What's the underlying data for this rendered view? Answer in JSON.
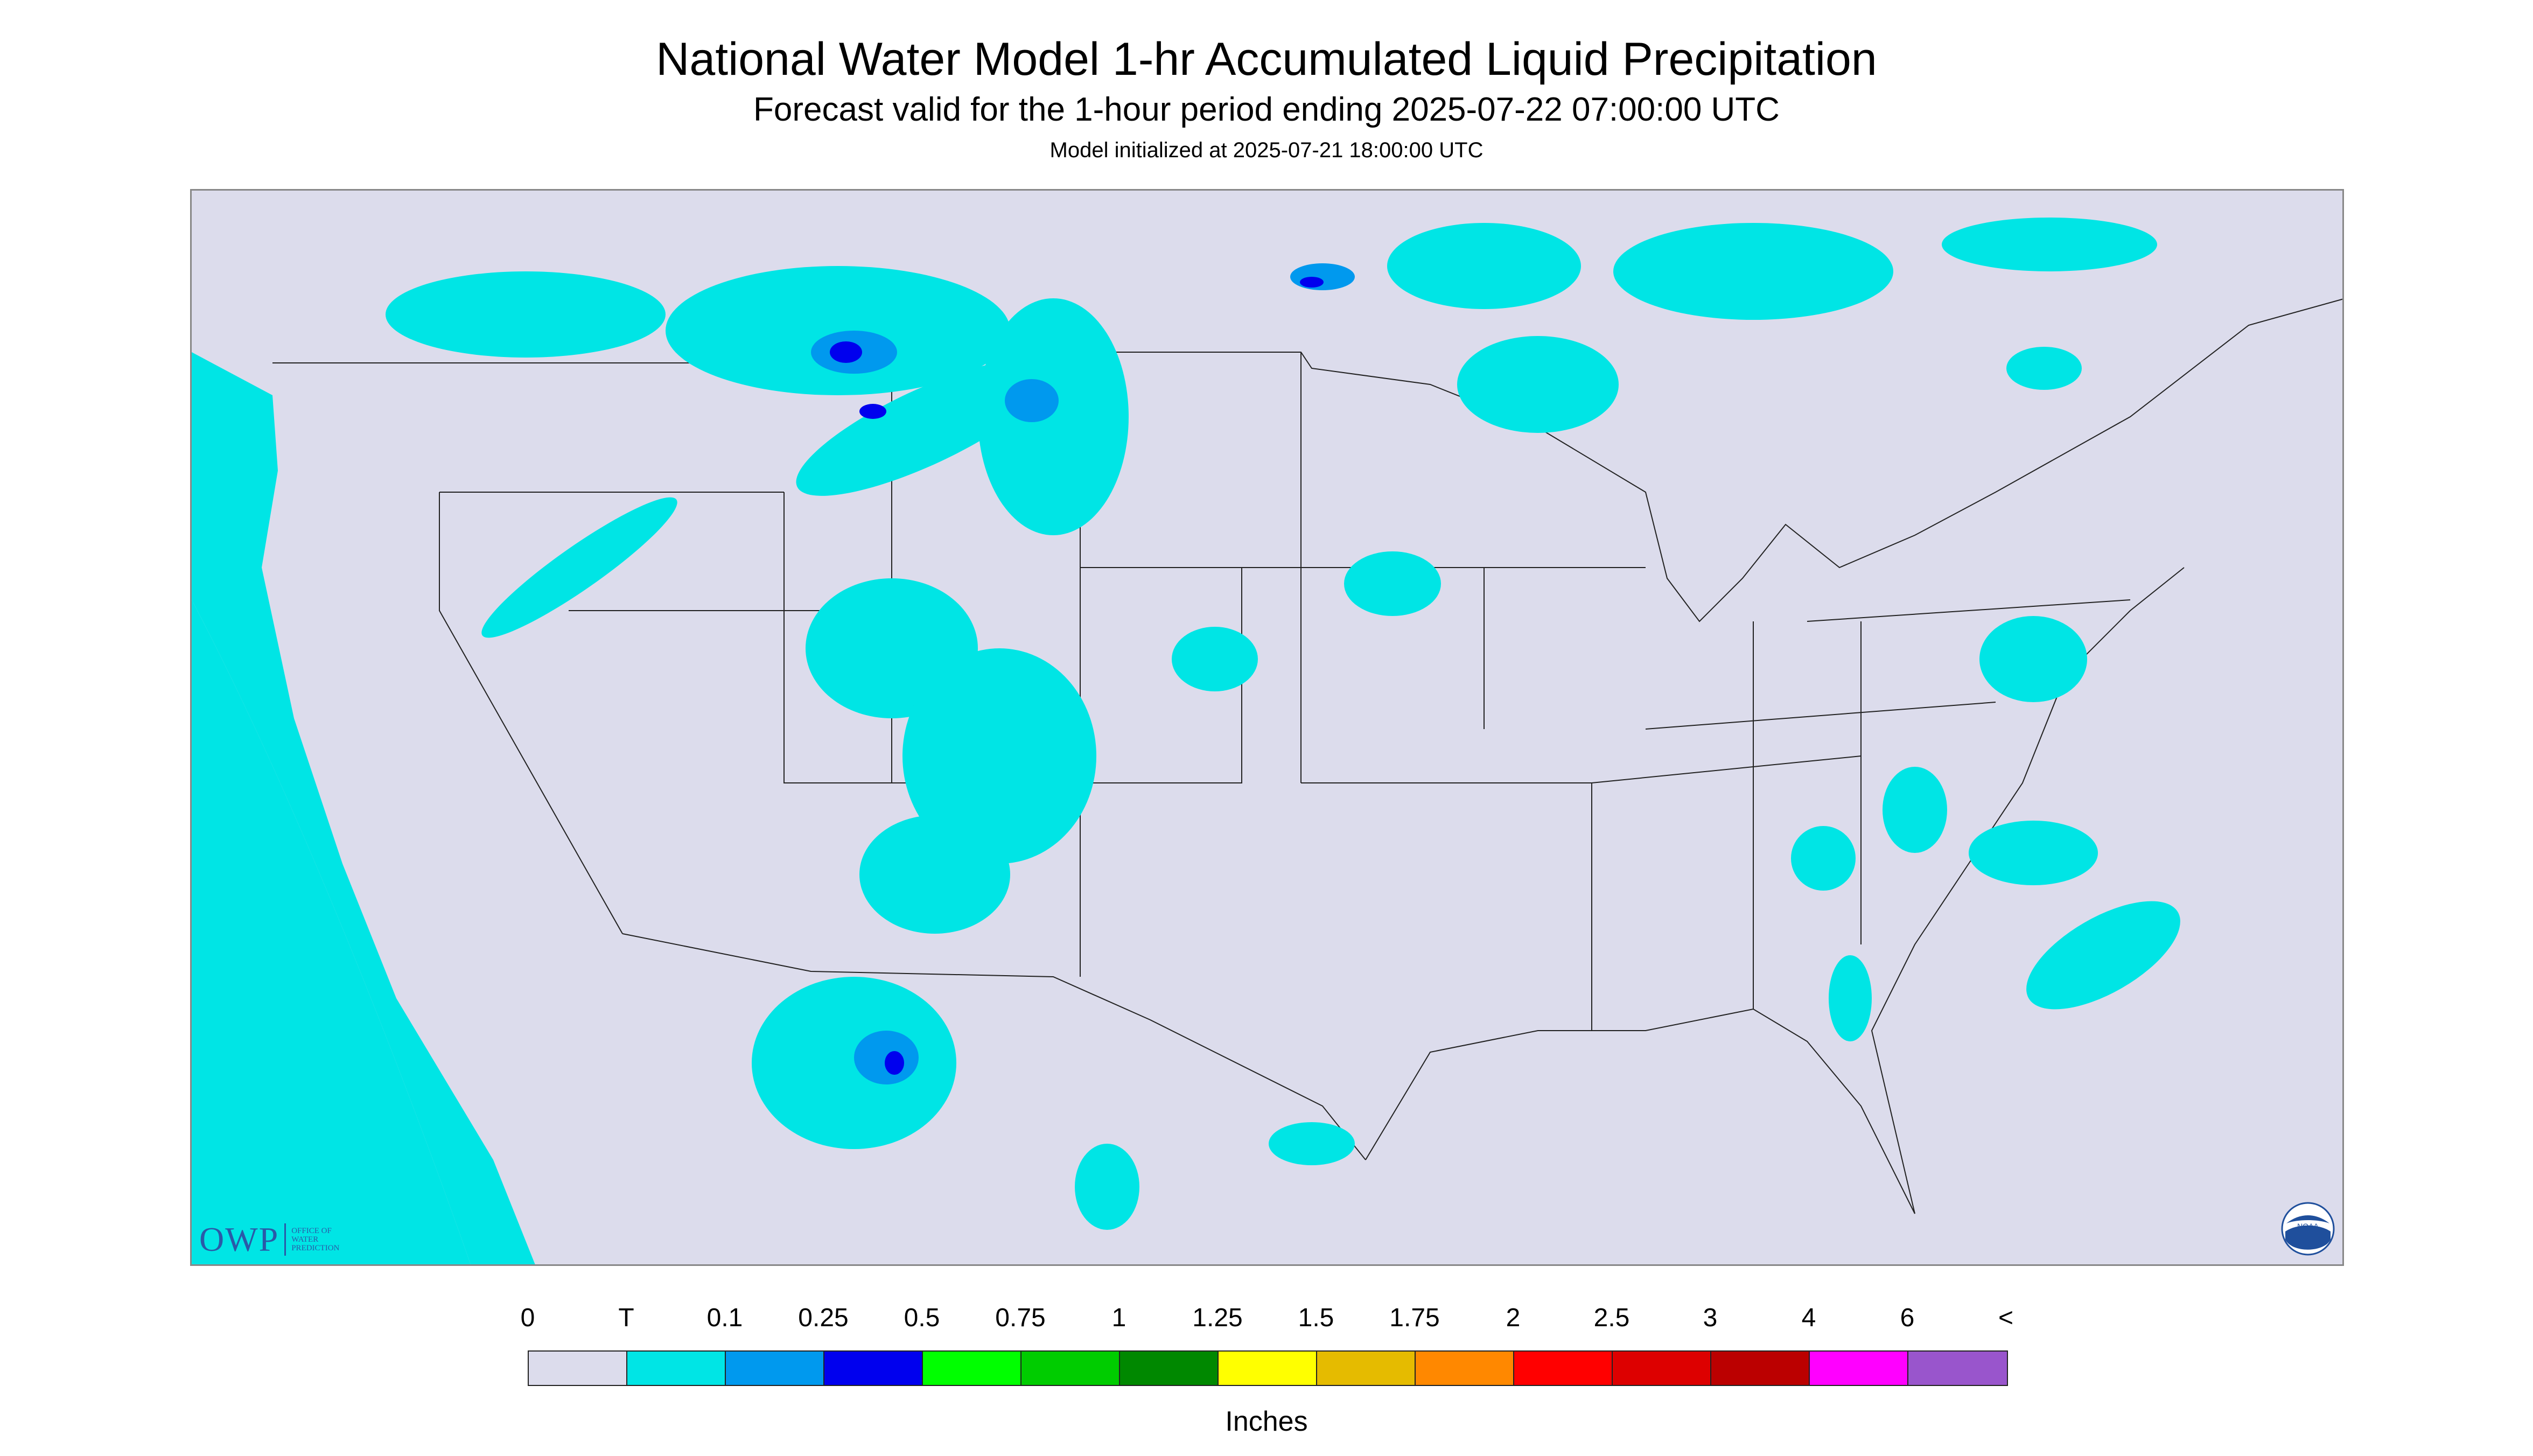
{
  "header": {
    "title": "National Water Model 1-hr Accumulated Liquid Precipitation",
    "subtitle": "Forecast valid for the 1-hour period ending 2025-07-22 07:00:00 UTC",
    "init_line": "Model initialized at 2025-07-21 18:00:00 UTC"
  },
  "logos": {
    "owp_mark": "OWP",
    "owp_text": [
      "OFFICE OF",
      "WATER",
      "PREDICTION"
    ],
    "noaa_text": "NOAA"
  },
  "legend": {
    "tick_labels": [
      "0",
      "T",
      "0.1",
      "0.25",
      "0.5",
      "0.75",
      "1",
      "1.25",
      "1.5",
      "1.75",
      "2",
      "2.5",
      "3",
      "4",
      "6",
      "<"
    ],
    "colors": [
      "#dcdcec",
      "#00e5e5",
      "#0099ee",
      "#0000ee",
      "#00ff00",
      "#00cc00",
      "#008800",
      "#ffff00",
      "#e5bb00",
      "#ff8800",
      "#ff0000",
      "#dd0000",
      "#bb0000",
      "#ff00ff",
      "#9955cc"
    ],
    "units": "Inches"
  },
  "map": {
    "background_color": "#dcdcec",
    "outside_domain_color": "#00e5e5",
    "boundary_color": "#222222"
  }
}
